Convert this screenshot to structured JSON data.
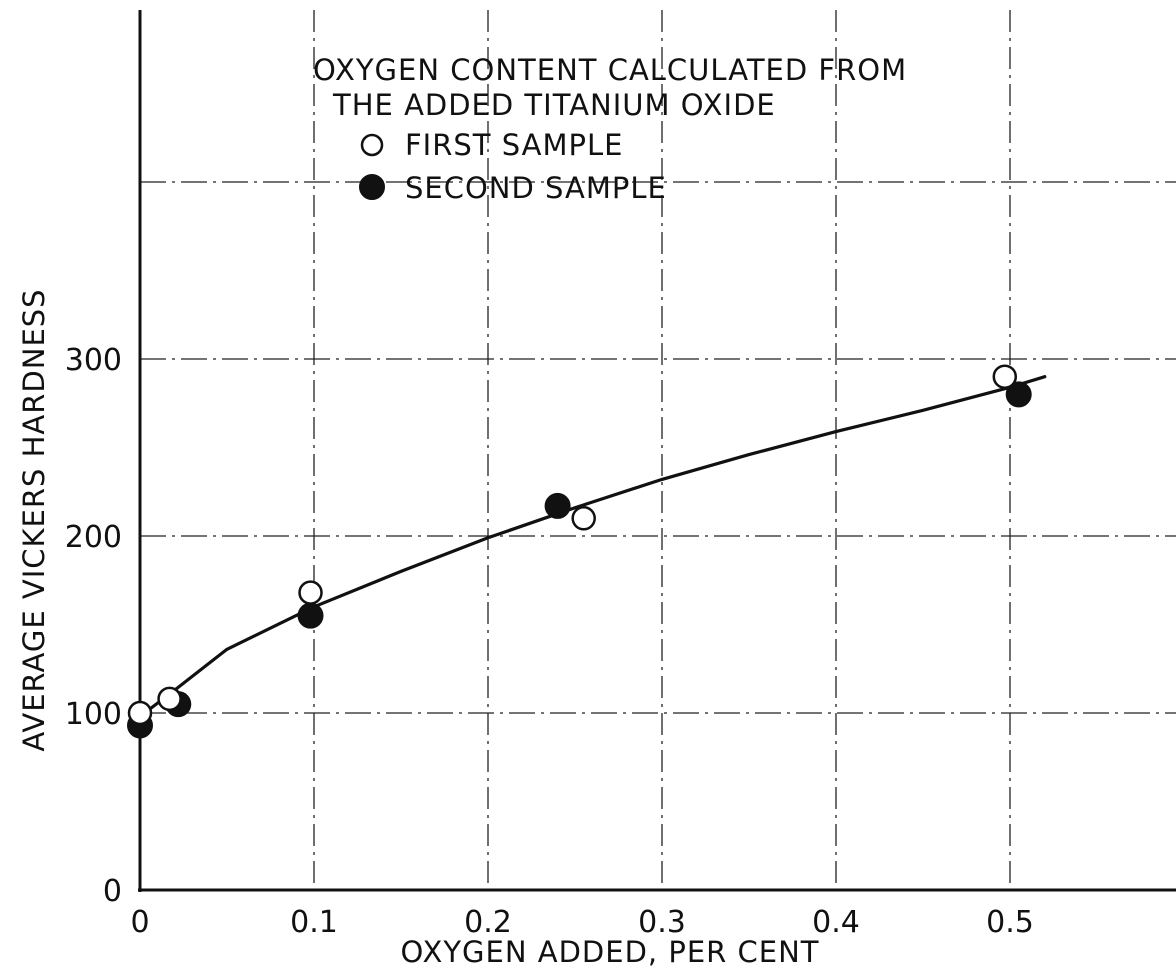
{
  "chart_data": {
    "type": "scatter",
    "title_lines": [
      "OXYGEN CONTENT  CALCULATED  FROM",
      "THE  ADDED TITANIUM  OXIDE"
    ],
    "xlabel": "OXYGEN  ADDED, PER  CENT",
    "ylabel": "AVERAGE  VICKERS  HARDNESS",
    "xlim": [
      0,
      0.58
    ],
    "ylim": [
      0,
      500
    ],
    "x_ticks": [
      {
        "value": 0,
        "label": "0"
      },
      {
        "value": 0.1,
        "label": "0.1"
      },
      {
        "value": 0.2,
        "label": "0.2"
      },
      {
        "value": 0.3,
        "label": "0.3"
      },
      {
        "value": 0.4,
        "label": "0.4"
      },
      {
        "value": 0.5,
        "label": "0.5"
      }
    ],
    "y_ticks": [
      {
        "value": 0,
        "label": "0"
      },
      {
        "value": 100,
        "label": "100"
      },
      {
        "value": 200,
        "label": "200"
      },
      {
        "value": 300,
        "label": "300"
      }
    ],
    "grid": true,
    "legend_position": "top-center",
    "series": [
      {
        "name": "FIRST  SAMPLE",
        "marker": "open-circle",
        "points": [
          {
            "x": 0,
            "y": 100
          },
          {
            "x": 0.017,
            "y": 108
          },
          {
            "x": 0.098,
            "y": 168
          },
          {
            "x": 0.255,
            "y": 210
          },
          {
            "x": 0.497,
            "y": 290
          }
        ]
      },
      {
        "name": "SECOND  SAMPLE",
        "marker": "filled-circle",
        "points": [
          {
            "x": 0,
            "y": 93
          },
          {
            "x": 0.022,
            "y": 105
          },
          {
            "x": 0.098,
            "y": 155
          },
          {
            "x": 0.24,
            "y": 217
          },
          {
            "x": 0.505,
            "y": 280
          }
        ]
      }
    ],
    "fit_curve": {
      "points": [
        {
          "x": 0,
          "y": 98
        },
        {
          "x": 0.02,
          "y": 113
        },
        {
          "x": 0.05,
          "y": 136
        },
        {
          "x": 0.1,
          "y": 160
        },
        {
          "x": 0.15,
          "y": 180
        },
        {
          "x": 0.2,
          "y": 199
        },
        {
          "x": 0.25,
          "y": 216
        },
        {
          "x": 0.3,
          "y": 232
        },
        {
          "x": 0.35,
          "y": 246
        },
        {
          "x": 0.4,
          "y": 259
        },
        {
          "x": 0.45,
          "y": 271
        },
        {
          "x": 0.5,
          "y": 284
        },
        {
          "x": 0.52,
          "y": 290
        }
      ]
    },
    "colors": {
      "ink": "#111111",
      "grid": "#222222",
      "background": "#ffffff"
    }
  }
}
